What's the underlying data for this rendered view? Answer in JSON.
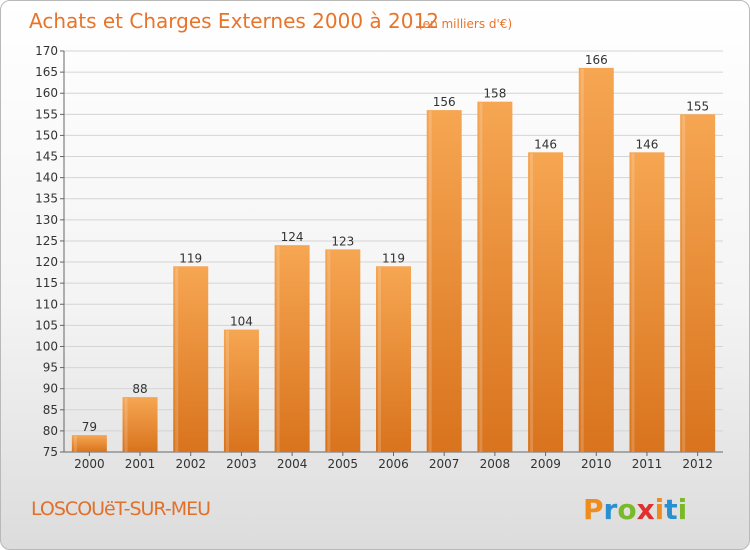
{
  "chart_data": {
    "type": "bar",
    "title": "Achats et Charges Externes 2000 à 2012",
    "subtitle": "(en milliers d'€)",
    "categories": [
      "2000",
      "2001",
      "2002",
      "2003",
      "2004",
      "2005",
      "2006",
      "2007",
      "2008",
      "2009",
      "2010",
      "2011",
      "2012"
    ],
    "values": [
      79,
      88,
      119,
      104,
      124,
      123,
      119,
      156,
      158,
      146,
      166,
      146,
      155
    ],
    "data_labels": [
      "79",
      "88",
      "119",
      "104",
      "124",
      "123",
      "119",
      "156",
      "158",
      "146",
      "166",
      "146",
      "155"
    ],
    "xlabel": "",
    "ylabel": "",
    "ylim": [
      75,
      170
    ],
    "yticks": [
      75,
      80,
      85,
      90,
      95,
      100,
      105,
      110,
      115,
      120,
      125,
      130,
      135,
      140,
      145,
      150,
      155,
      160,
      165,
      170
    ],
    "grid": true,
    "bar_color_top": "#f6a652",
    "bar_color_bottom": "#d9731d"
  },
  "footer": {
    "commune": "LOSCOUëT-SUR-MEU",
    "logo_letters": [
      "P",
      "r",
      "o",
      "x",
      "i",
      "t",
      "i"
    ],
    "logo_colors": [
      "#f08c1e",
      "#2a8fd0",
      "#7ab929",
      "#e0302d",
      "#f08c1e",
      "#2a8fd0",
      "#7ab929"
    ]
  }
}
